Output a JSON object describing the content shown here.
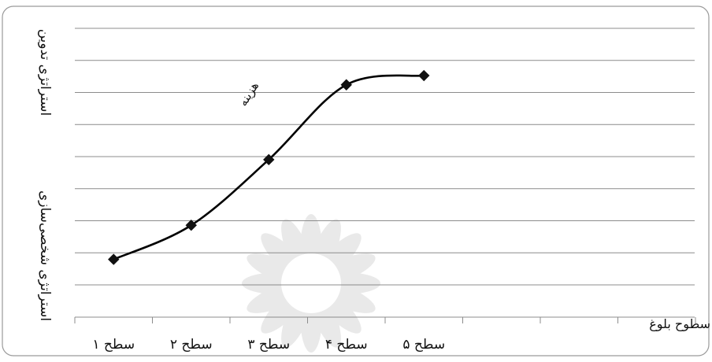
{
  "chart_data": {
    "type": "line",
    "categories": [
      "سطح ۱",
      "سطح ۲",
      "سطح ۳",
      "سطح ۴",
      "سطح ۵"
    ],
    "series": [
      {
        "name": "هزینه",
        "values": [
          2.2,
          3.5,
          6.0,
          8.85,
          9.2
        ]
      }
    ],
    "xlabel": "سطوح بلوغ",
    "ylabel_top": "استراتژی تدوین",
    "ylabel_bottom": "استراتژی شخصی‌سازی",
    "ylim": [
      0,
      11
    ],
    "y_gridlines": 9,
    "grid": true,
    "line_color": "#000000",
    "marker": "diamond",
    "smooth": true,
    "watermark": "decorative rosette (light gray)"
  }
}
